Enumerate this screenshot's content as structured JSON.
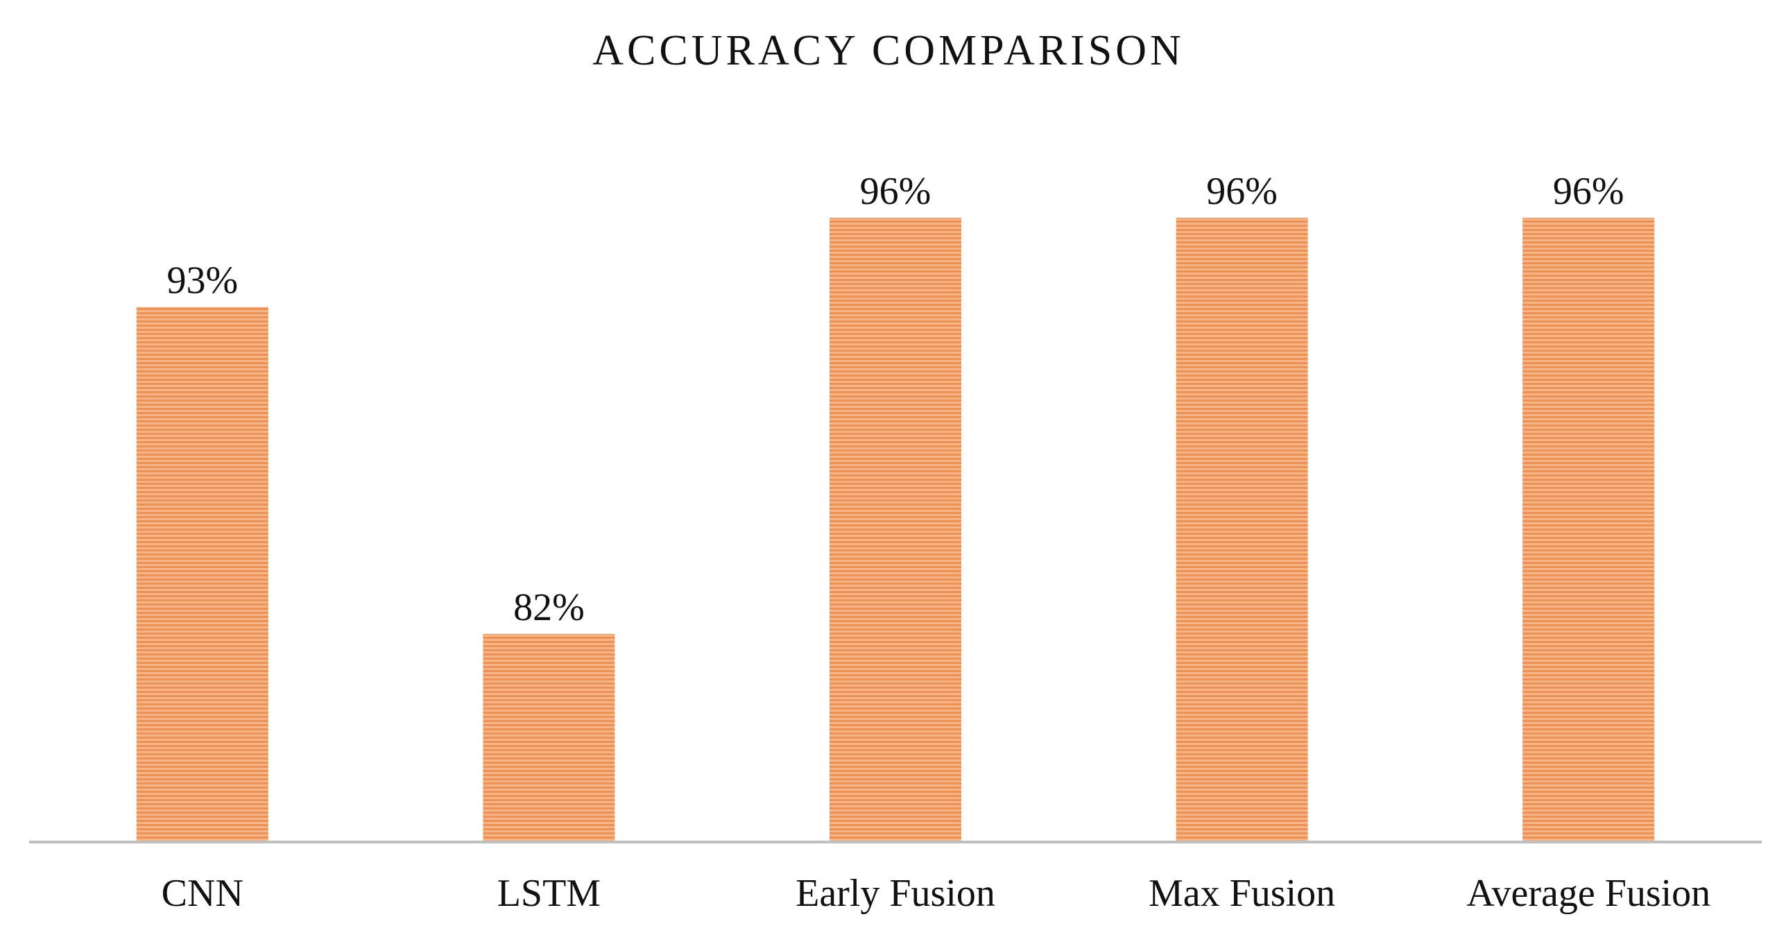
{
  "chart_data": {
    "type": "bar",
    "title": "ACCURACY COMPARISON",
    "categories": [
      "CNN",
      "LSTM",
      "Early Fusion",
      "Max Fusion",
      "Average Fusion"
    ],
    "values": [
      93,
      82,
      96,
      96,
      96
    ],
    "value_labels": [
      "93%",
      "82%",
      "96%",
      "96%",
      "96%"
    ],
    "xlabel": "",
    "ylabel": "",
    "ylim": [
      75,
      100
    ],
    "grid": false,
    "legend": "none",
    "bar_color": "#F4A46E",
    "bar_stripe_color": "#E98C4C",
    "axis_color": "#BFBFBF"
  }
}
